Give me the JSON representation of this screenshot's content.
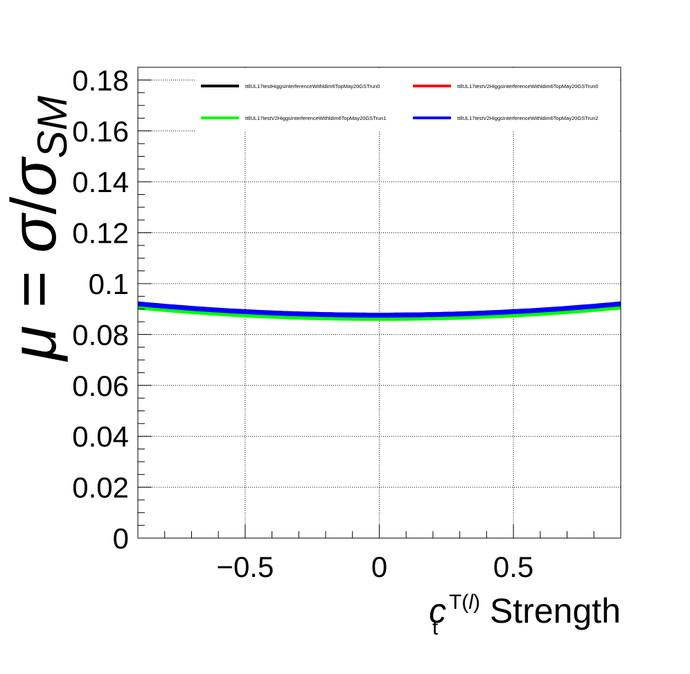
{
  "chart_data": {
    "type": "line",
    "xlabel": {
      "symbol": "c",
      "subscript": "t",
      "superscript": "T(",
      "superscript_italic": "l",
      "superscript_close": ")",
      "suffix": " Strength"
    },
    "ylabel": {
      "mu": "μ",
      "equals": " = ",
      "sigma": "σ",
      "slash": "/",
      "sigma2": "σ",
      "sub": "SM"
    },
    "xlim": [
      -0.9,
      0.9
    ],
    "ylim": [
      0,
      0.185
    ],
    "x_ticks": [
      {
        "value": -0.5,
        "label": "−0.5"
      },
      {
        "value": 0,
        "label": "0"
      },
      {
        "value": 0.5,
        "label": "0.5"
      }
    ],
    "y_ticks": [
      {
        "value": 0,
        "label": "0"
      },
      {
        "value": 0.02,
        "label": "0.02"
      },
      {
        "value": 0.04,
        "label": "0.04"
      },
      {
        "value": 0.06,
        "label": "0.06"
      },
      {
        "value": 0.08,
        "label": "0.08"
      },
      {
        "value": 0.1,
        "label": "0.1"
      },
      {
        "value": 0.12,
        "label": "0.12"
      },
      {
        "value": 0.14,
        "label": "0.14"
      },
      {
        "value": 0.16,
        "label": "0.16"
      },
      {
        "value": 0.18,
        "label": "0.18"
      }
    ],
    "grid": true,
    "legend_position": "top",
    "series": [
      {
        "name": "ttllUL17testHiggsInterferenceWithldim6TopMay20GSTrun0",
        "color": "#000000",
        "a": 0.0876,
        "b": 0.0052
      },
      {
        "name": "ttllUL17testV2HiggsInterferenceWithldim6TopMay20GSTrun0",
        "color": "#ff0000",
        "a": 0.0876,
        "b": 0.0052
      },
      {
        "name": "ttllUL17testV2HiggsInterferenceWithldim6TopMay20GSTrun1",
        "color": "#00ff00",
        "a": 0.0863,
        "b": 0.0055
      },
      {
        "name": "ttllUL17testV2HiggsInterferenceWithldim6TopMay20GSTrun2",
        "color": "#0000ff",
        "a": 0.0876,
        "b": 0.0055
      }
    ]
  }
}
